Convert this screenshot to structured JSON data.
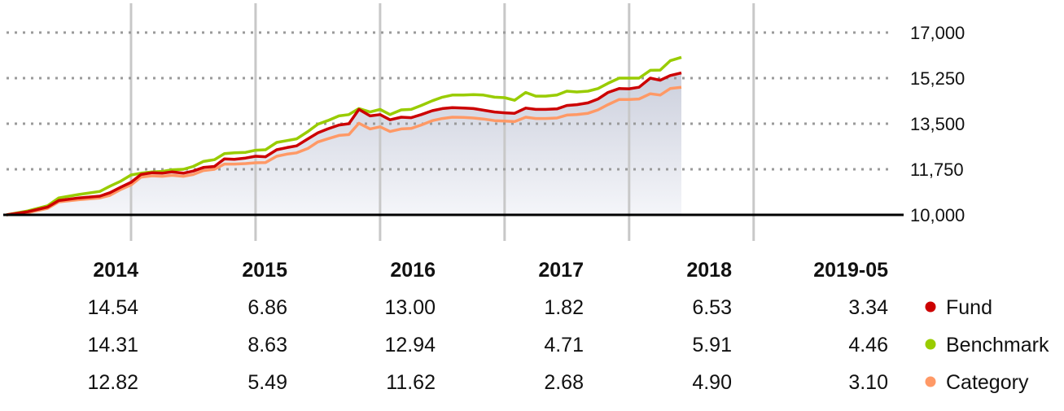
{
  "chart_data": {
    "type": "line",
    "ylim": [
      10000,
      17000
    ],
    "y_ticks": [
      "10,000",
      "11,750",
      "13,500",
      "15,250",
      "17,000"
    ],
    "y_tick_values": [
      10000,
      11750,
      13500,
      15250,
      17000
    ],
    "y_axis_side": "right",
    "grid": "horizontal dotted, vertical solid at year boundaries",
    "x_start": 2013.0,
    "x_end": 2019.42,
    "year_boundaries": [
      2014,
      2015,
      2016,
      2017,
      2018,
      2019
    ],
    "series": [
      {
        "name": "Fund",
        "color": "#cc0000",
        "x": [
          2013.0,
          2013.17,
          2013.33,
          2013.42,
          2013.58,
          2013.75,
          2013.83,
          2013.92,
          2014.0,
          2014.08,
          2014.17,
          2014.25,
          2014.33,
          2014.42,
          2014.5,
          2014.58,
          2014.67,
          2014.75,
          2014.83,
          2014.92,
          2015.0,
          2015.08,
          2015.17,
          2015.25,
          2015.33,
          2015.42,
          2015.5,
          2015.58,
          2015.67,
          2015.75,
          2015.83,
          2015.92,
          2016.0,
          2016.08,
          2016.17,
          2016.25,
          2016.33,
          2016.42,
          2016.5,
          2016.58,
          2016.67,
          2016.75,
          2016.83,
          2016.92,
          2017.0,
          2017.08,
          2017.17,
          2017.25,
          2017.33,
          2017.42,
          2017.5,
          2017.58,
          2017.67,
          2017.75,
          2017.83,
          2017.92,
          2018.0,
          2018.08,
          2018.17,
          2018.25,
          2018.33,
          2018.42
        ],
        "y": [
          10000,
          10120,
          10300,
          10550,
          10650,
          10720,
          10850,
          11070,
          11250,
          11550,
          11620,
          11600,
          11650,
          11600,
          11680,
          11820,
          11860,
          12150,
          12130,
          12180,
          12250,
          12230,
          12500,
          12580,
          12650,
          12920,
          13150,
          13300,
          13450,
          13500,
          14050,
          13800,
          13850,
          13650,
          13750,
          13730,
          13850,
          14000,
          14080,
          14120,
          14100,
          14080,
          14020,
          13950,
          13920,
          13900,
          14100,
          14050,
          14050,
          14070,
          14200,
          14230,
          14300,
          14450,
          14700,
          14850,
          14840,
          14900,
          15250,
          15170,
          15350,
          15450
        ]
      },
      {
        "name": "Benchmark",
        "color": "#99cc00",
        "x": [
          2013.0,
          2013.17,
          2013.33,
          2013.42,
          2013.58,
          2013.75,
          2013.83,
          2013.92,
          2014.0,
          2014.08,
          2014.17,
          2014.25,
          2014.33,
          2014.42,
          2014.5,
          2014.58,
          2014.67,
          2014.75,
          2014.83,
          2014.92,
          2015.0,
          2015.08,
          2015.17,
          2015.25,
          2015.33,
          2015.42,
          2015.5,
          2015.58,
          2015.67,
          2015.75,
          2015.83,
          2015.92,
          2016.0,
          2016.08,
          2016.17,
          2016.25,
          2016.33,
          2016.42,
          2016.5,
          2016.58,
          2016.67,
          2016.75,
          2016.83,
          2016.92,
          2017.0,
          2017.08,
          2017.17,
          2017.25,
          2017.33,
          2017.42,
          2017.5,
          2017.58,
          2017.67,
          2017.75,
          2017.83,
          2017.92,
          2018.0,
          2018.08,
          2018.17,
          2018.25,
          2018.33,
          2018.42
        ],
        "y": [
          10000,
          10150,
          10350,
          10650,
          10780,
          10900,
          11100,
          11300,
          11530,
          11600,
          11650,
          11670,
          11730,
          11750,
          11860,
          12050,
          12120,
          12350,
          12380,
          12400,
          12480,
          12500,
          12780,
          12850,
          12920,
          13200,
          13480,
          13620,
          13800,
          13850,
          14080,
          13950,
          14050,
          13850,
          14030,
          14050,
          14200,
          14380,
          14520,
          14600,
          14600,
          14620,
          14600,
          14520,
          14500,
          14400,
          14700,
          14560,
          14560,
          14600,
          14750,
          14720,
          14750,
          14850,
          15050,
          15250,
          15250,
          15250,
          15550,
          15560,
          15920,
          16050
        ]
      },
      {
        "name": "Category",
        "color": "#ff9966",
        "x": [
          2013.0,
          2013.17,
          2013.33,
          2013.42,
          2013.58,
          2013.75,
          2013.83,
          2013.92,
          2014.0,
          2014.08,
          2014.17,
          2014.25,
          2014.33,
          2014.42,
          2014.5,
          2014.58,
          2014.67,
          2014.75,
          2014.83,
          2014.92,
          2015.0,
          2015.08,
          2015.17,
          2015.25,
          2015.33,
          2015.42,
          2015.5,
          2015.58,
          2015.67,
          2015.75,
          2015.83,
          2015.92,
          2016.0,
          2016.08,
          2016.17,
          2016.25,
          2016.33,
          2016.42,
          2016.5,
          2016.58,
          2016.67,
          2016.75,
          2016.83,
          2016.92,
          2017.0,
          2017.08,
          2017.17,
          2017.25,
          2017.33,
          2017.42,
          2017.5,
          2017.58,
          2017.67,
          2017.75,
          2017.83,
          2017.92,
          2018.0,
          2018.08,
          2018.17,
          2018.25,
          2018.33,
          2018.42
        ],
        "y": [
          10000,
          10080,
          10250,
          10500,
          10580,
          10650,
          10750,
          10980,
          11150,
          11450,
          11500,
          11480,
          11520,
          11480,
          11550,
          11700,
          11750,
          11950,
          11950,
          11970,
          12000,
          12010,
          12250,
          12330,
          12380,
          12550,
          12800,
          12920,
          13050,
          13080,
          13520,
          13300,
          13380,
          13200,
          13300,
          13320,
          13450,
          13620,
          13700,
          13750,
          13740,
          13720,
          13680,
          13620,
          13600,
          13580,
          13750,
          13700,
          13700,
          13720,
          13830,
          13850,
          13900,
          14030,
          14230,
          14430,
          14430,
          14450,
          14650,
          14600,
          14850,
          14900
        ]
      }
    ],
    "table": {
      "columns": [
        "2014",
        "2015",
        "2016",
        "2017",
        "2018",
        "2019-05"
      ],
      "rows": [
        {
          "name": "Fund",
          "color": "#cc0000",
          "values": [
            "14.54",
            "6.86",
            "13.00",
            "1.82",
            "6.53",
            "3.34"
          ]
        },
        {
          "name": "Benchmark",
          "color": "#99cc00",
          "values": [
            "14.31",
            "8.63",
            "12.94",
            "4.71",
            "5.91",
            "4.46"
          ]
        },
        {
          "name": "Category",
          "color": "#ff9966",
          "values": [
            "12.82",
            "5.49",
            "11.62",
            "2.68",
            "4.90",
            "3.10"
          ]
        }
      ]
    }
  }
}
